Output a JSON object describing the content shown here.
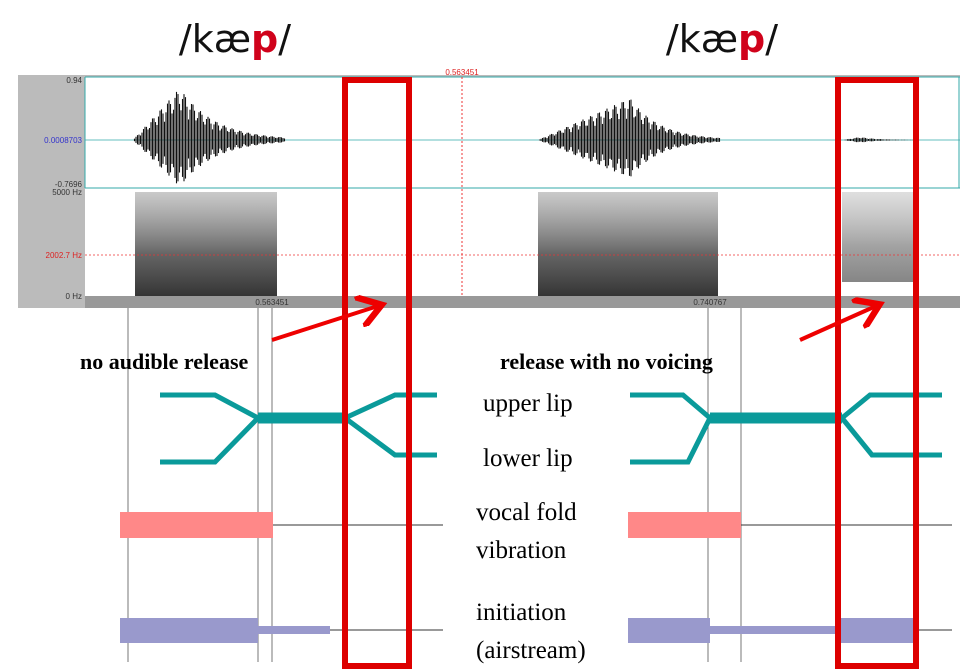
{
  "titles": [
    {
      "prefix": "/kæ",
      "highlight": "p",
      "suffix": "/"
    },
    {
      "prefix": "/kæ",
      "highlight": "p",
      "suffix": "/"
    }
  ],
  "axis": {
    "amp_top": "0.94",
    "amp_mid": "0.0008703",
    "amp_bottom": "-0.7696",
    "freq_top": "5000 Hz",
    "freq_mid": "2002.7 Hz",
    "freq_bottom": "0 Hz",
    "cursor_top": "0.563451",
    "duration_left": "0.563451",
    "duration_right": "0.740767"
  },
  "annotations": [
    "no audible release",
    "release with no voicing"
  ],
  "labels": [
    "upper lip",
    "lower lip",
    "vocal fold",
    "vibration",
    "initiation",
    "(airstream)"
  ]
}
